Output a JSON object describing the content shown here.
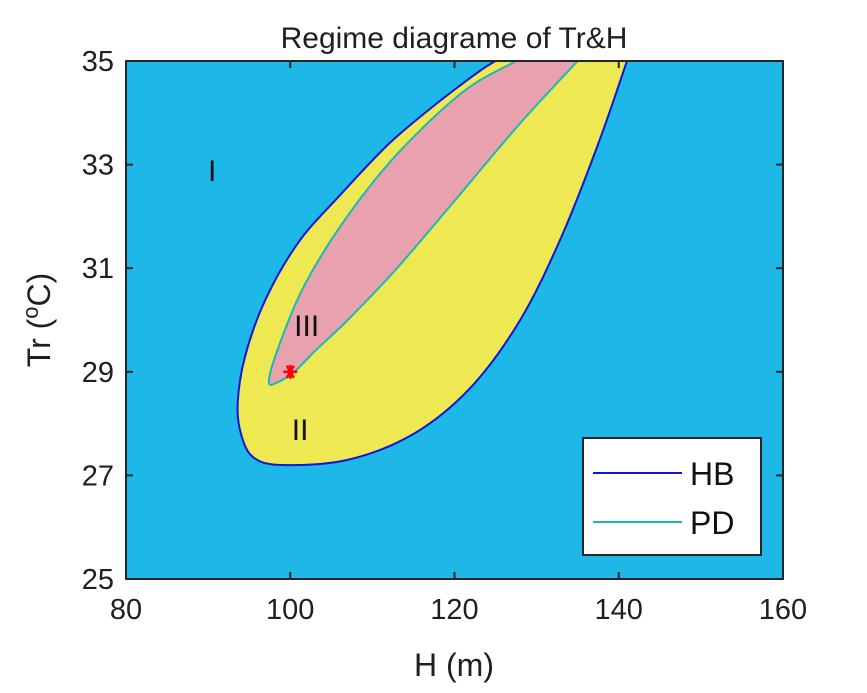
{
  "chart_data": {
    "type": "contour",
    "title": "Regime diagrame of Tr&H",
    "xlabel": "H (m)",
    "ylabel_prefix": "Tr (",
    "ylabel_sup": "o",
    "ylabel_suffix": "C)",
    "xlim": [
      80,
      160
    ],
    "ylim": [
      25,
      35
    ],
    "xticks": [
      80,
      100,
      120,
      140,
      160
    ],
    "yticks": [
      25,
      27,
      29,
      31,
      33,
      35
    ],
    "xtick_labels": [
      "80",
      "100",
      "120",
      "140",
      "160"
    ],
    "ytick_labels": [
      "25",
      "27",
      "29",
      "31",
      "33",
      "35"
    ],
    "grid": false,
    "legend_position": "lower-right",
    "colors": {
      "region_I": "#1db8e8",
      "region_II": "#eee853",
      "region_III": "#e9a1ae",
      "hb_line": "#1414d2",
      "pd_line": "#19b8b8",
      "marker": "#ff0000",
      "axes": "#262626"
    },
    "regions": [
      {
        "label": "I",
        "x": 90.5,
        "y": 32.9
      },
      {
        "label": "II",
        "x": 101.2,
        "y": 27.9
      },
      {
        "label": "III",
        "x": 102.0,
        "y": 29.9
      }
    ],
    "series": [
      {
        "name": "HB",
        "boundary": [
          [
            141.0,
            35.0
          ],
          [
            137.5,
            33.4
          ],
          [
            133.0,
            31.6
          ],
          [
            128.0,
            30.0
          ],
          [
            122.0,
            28.7
          ],
          [
            115.0,
            27.8
          ],
          [
            107.0,
            27.3
          ],
          [
            99.0,
            27.2
          ],
          [
            95.5,
            27.35
          ],
          [
            94.0,
            27.8
          ],
          [
            93.6,
            28.4
          ],
          [
            94.5,
            29.3
          ],
          [
            97.0,
            30.4
          ],
          [
            101.0,
            31.5
          ],
          [
            106.0,
            32.4
          ],
          [
            112.0,
            33.4
          ],
          [
            118.0,
            34.2
          ],
          [
            123.0,
            34.8
          ],
          [
            125.0,
            35.0
          ]
        ]
      },
      {
        "name": "PD",
        "boundary": [
          [
            135.0,
            35.0
          ],
          [
            128.0,
            33.8
          ],
          [
            120.0,
            32.3
          ],
          [
            113.0,
            31.0
          ],
          [
            107.0,
            30.0
          ],
          [
            103.0,
            29.4
          ],
          [
            100.5,
            29.0
          ],
          [
            98.5,
            28.8
          ],
          [
            97.4,
            28.8
          ],
          [
            98.4,
            29.4
          ],
          [
            101.5,
            30.6
          ],
          [
            106.5,
            31.9
          ],
          [
            113.0,
            33.2
          ],
          [
            121.0,
            34.4
          ],
          [
            127.5,
            35.0
          ]
        ]
      }
    ],
    "points": [
      {
        "x": 100.0,
        "y": 29.0,
        "marker": "*",
        "color": "#ff0000"
      }
    ]
  }
}
